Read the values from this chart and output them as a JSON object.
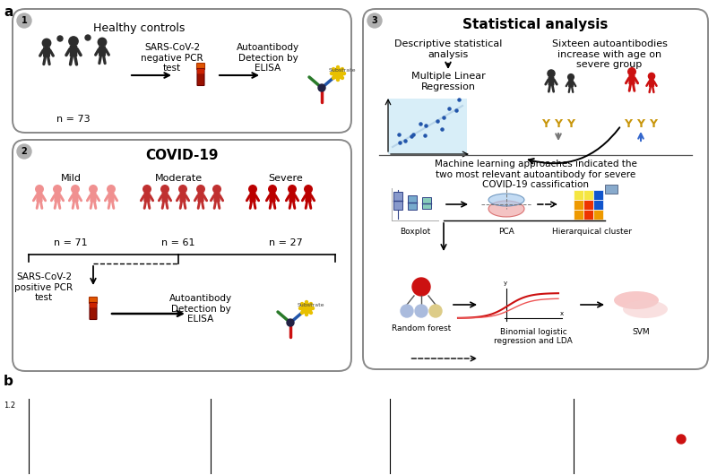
{
  "box1_title": "Healthy controls",
  "box1_n": "n = 73",
  "box1_pcr": "SARS-CoV-2\nnegative PCR\ntest",
  "box1_elisa": "Autoantibody\nDetection by\nELISA",
  "box2_title": "COVID-19",
  "box2_mild": "Mild",
  "box2_moderate": "Moderate",
  "box2_severe": "Severe",
  "box2_n1": "n = 71",
  "box2_n2": "n = 61",
  "box2_n3": "n = 27",
  "box2_pcr": "SARS-CoV-2\npositive PCR\ntest",
  "box2_elisa": "Autoantibody\nDetection by\nELISA",
  "box3_title": "Statistical analysis",
  "box3_desc1": "Descriptive statistical\nanalysis",
  "box3_mlr": "Multiple Linear\nRegression",
  "box3_sixteen": "Sixteen autoantibodies\nincrease with age on\nsevere group",
  "box3_ml_text": "Machine learning approaches indicated the\ntwo most relevant autoantibody for severe\nCOVID-19 cassification",
  "box3_bp": "Boxplot",
  "box3_pca": "PCA",
  "box3_hc": "Hierarquical cluster",
  "box3_rf": "Random forest",
  "box3_blr": "Binomial logistic\nregression and LDA",
  "box3_svm": "SVM",
  "bg": "#ffffff",
  "border": "#999999",
  "dark": "#2d2d2d",
  "mild_c": "#f09090",
  "mod_c": "#c03030",
  "sev_c": "#bb0000",
  "red_c": "#cc1111",
  "gold": "#c8960c"
}
